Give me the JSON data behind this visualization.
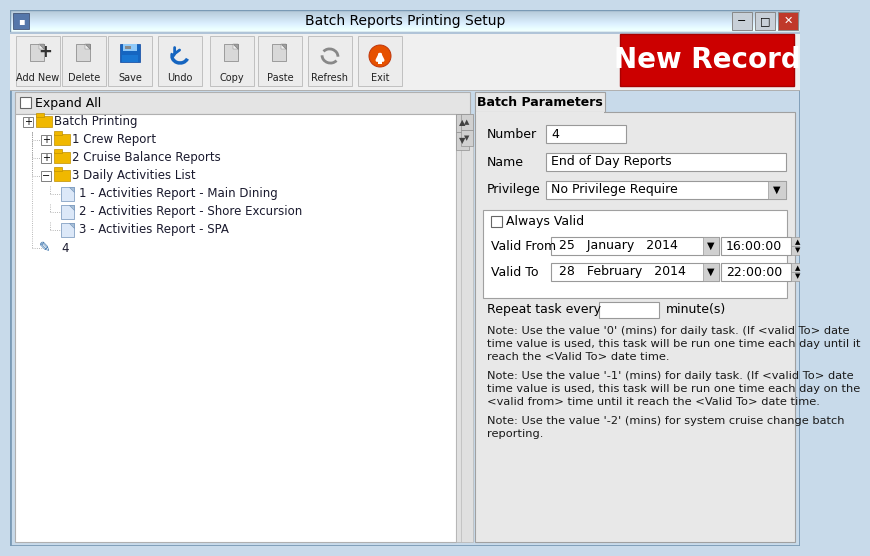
{
  "title": "Batch Reports Printing Setup",
  "bg_color": "#c8daea",
  "toolbar_buttons": [
    "Add New",
    "Delete",
    "Save",
    "Undo",
    "Copy",
    "Paste",
    "Refresh",
    "Exit"
  ],
  "new_record_text": "New Record",
  "expand_all": "Expand All",
  "tab_label": "Batch Parameters",
  "field_number": "4",
  "field_name": "End of Day Reports",
  "field_privilege": "No Privilege Require",
  "valid_from_date": "25   January   2014",
  "valid_from_time": "16:00:00",
  "valid_to_date": "28   February   2014",
  "valid_to_time": "22:00:00",
  "note1": "Note: Use the value '0' (mins) for daily task. (If <valid To> date\ntime value is used, this task will be run one time each day until it\nreach the <Valid To> date time.",
  "note2": "Note: Use the value '-1' (mins) for daily task. (If <valid To> date\ntime value is used, this task will be run one time each day on the\n<valid from> time until it reach the <Valid To> date time.",
  "note3": "Note: Use the value '-2' (mins) for system cruise change batch\nreporting.",
  "repeat_label": "Repeat task every",
  "repeat_unit": "minute(s)"
}
